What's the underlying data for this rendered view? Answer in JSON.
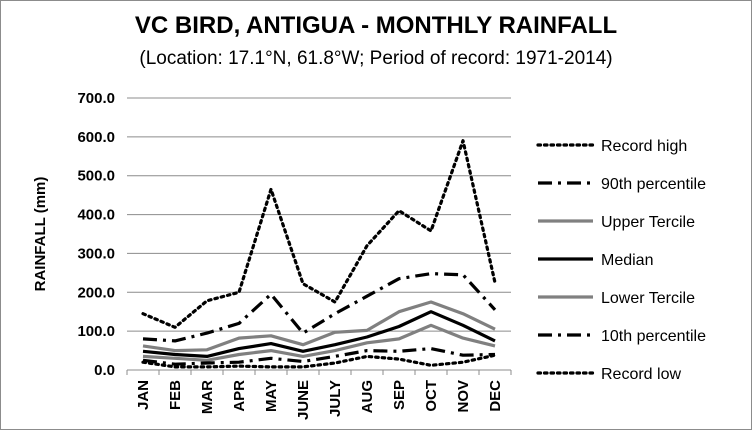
{
  "chart_data": {
    "type": "line",
    "title": "VC BIRD, ANTIGUA - MONTHLY RAINFALL",
    "subtitle": "(Location: 17.1°N, 61.8°W; Period of record: 1971-2014)",
    "xlabel": "",
    "ylabel": "RAINFALL (mm)",
    "ylim": [
      0,
      700
    ],
    "y_ticks": [
      "0.0",
      "100.0",
      "200.0",
      "300.0",
      "400.0",
      "500.0",
      "600.0",
      "700.0"
    ],
    "categories": [
      "JAN",
      "FEB",
      "MAR",
      "APR",
      "MAY",
      "JUNE",
      "JULY",
      "AUG",
      "SEP",
      "OCT",
      "NOV",
      "DEC"
    ],
    "grid": "horizontal",
    "legend_position": "right",
    "series": [
      {
        "name": "Record high",
        "style": "dotted",
        "color": "#000000",
        "values": [
          145,
          110,
          178,
          200,
          465,
          222,
          175,
          320,
          410,
          358,
          590,
          225
        ]
      },
      {
        "name": "90th percentile",
        "style": "dashdot",
        "color": "#000000",
        "values": [
          80,
          75,
          95,
          120,
          195,
          95,
          145,
          190,
          235,
          248,
          245,
          155
        ]
      },
      {
        "name": "Upper Tercile",
        "style": "solid",
        "color": "#808080",
        "values": [
          62,
          50,
          52,
          82,
          88,
          65,
          97,
          102,
          150,
          175,
          145,
          105
        ]
      },
      {
        "name": "Median",
        "style": "solid",
        "color": "#000000",
        "values": [
          48,
          40,
          35,
          55,
          68,
          48,
          65,
          85,
          112,
          150,
          115,
          75
        ]
      },
      {
        "name": "Lower Tercile",
        "style": "solid",
        "color": "#808080",
        "values": [
          35,
          30,
          25,
          40,
          50,
          35,
          50,
          70,
          80,
          115,
          82,
          62
        ]
      },
      {
        "name": "10th percentile",
        "style": "dashdot",
        "color": "#000000",
        "values": [
          25,
          15,
          18,
          20,
          30,
          22,
          35,
          50,
          48,
          55,
          38,
          40
        ]
      },
      {
        "name": "Record low",
        "style": "dotted",
        "color": "#000000",
        "values": [
          20,
          8,
          8,
          10,
          8,
          8,
          18,
          35,
          28,
          12,
          20,
          38
        ]
      }
    ]
  }
}
